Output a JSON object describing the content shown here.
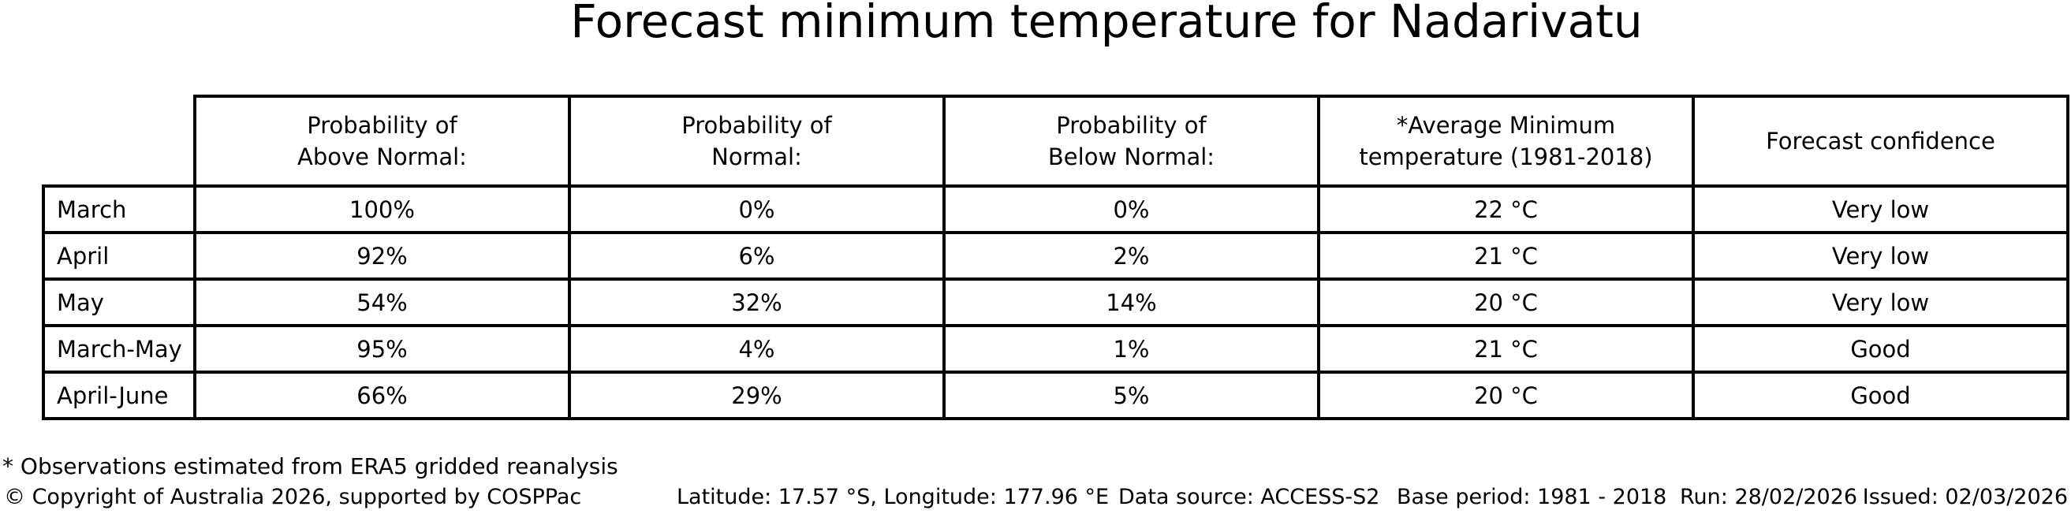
{
  "title": "Forecast minimum temperature for Nadarivatu",
  "table": {
    "headers": [
      "Probability of\nAbove Normal:",
      "Probability of\nNormal:",
      "Probability of\nBelow Normal:",
      "*Average Minimum\ntemperature (1981-2018)",
      "Forecast confidence"
    ],
    "rows": [
      {
        "label": "March",
        "cells": [
          "100%",
          "0%",
          "0%",
          "22 °C",
          "Very low"
        ]
      },
      {
        "label": "April",
        "cells": [
          "92%",
          "6%",
          "2%",
          "21 °C",
          "Very low"
        ]
      },
      {
        "label": "May",
        "cells": [
          "54%",
          "32%",
          "14%",
          "20 °C",
          "Very low"
        ]
      },
      {
        "label": "March-May",
        "cells": [
          "95%",
          "4%",
          "1%",
          "21 °C",
          "Good"
        ]
      },
      {
        "label": "April-June",
        "cells": [
          "66%",
          "29%",
          "5%",
          "20 °C",
          "Good"
        ]
      }
    ]
  },
  "footnote": "* Observations estimated from ERA5 gridded reanalysis",
  "footer": {
    "copyright": "© Copyright of Australia 2026, supported by COSPPac",
    "coordinates": "Latitude: 17.57 °S, Longitude: 177.96 °E",
    "data_source": "Data source: ACCESS-S2",
    "base_period": "Base period: 1981 - 2018",
    "run": "Run: 28/02/2026",
    "issued": "Issued: 02/03/2026"
  },
  "colors": {
    "text": "#000000",
    "background": "#ffffff",
    "border": "#000000"
  },
  "chart_data": {
    "type": "table",
    "title": "Forecast minimum temperature for Nadarivatu",
    "row_labels": [
      "March",
      "April",
      "May",
      "March-May",
      "April-June"
    ],
    "columns": [
      "Probability of Above Normal:",
      "Probability of Normal:",
      "Probability of Below Normal:",
      "*Average Minimum temperature (1981-2018)",
      "Forecast confidence"
    ],
    "rows": [
      [
        "100%",
        "0%",
        "0%",
        "22 °C",
        "Very low"
      ],
      [
        "92%",
        "6%",
        "2%",
        "21 °C",
        "Very low"
      ],
      [
        "54%",
        "32%",
        "14%",
        "20 °C",
        "Very low"
      ],
      [
        "95%",
        "4%",
        "1%",
        "21 °C",
        "Good"
      ],
      [
        "66%",
        "29%",
        "5%",
        "20 °C",
        "Good"
      ]
    ],
    "probability_above_normal_pct": [
      100,
      92,
      54,
      95,
      66
    ],
    "probability_normal_pct": [
      0,
      6,
      32,
      4,
      29
    ],
    "probability_below_normal_pct": [
      0,
      2,
      14,
      1,
      5
    ],
    "average_minimum_temperature_c": [
      22,
      21,
      20,
      21,
      20
    ],
    "forecast_confidence": [
      "Very low",
      "Very low",
      "Very low",
      "Good",
      "Good"
    ]
  }
}
